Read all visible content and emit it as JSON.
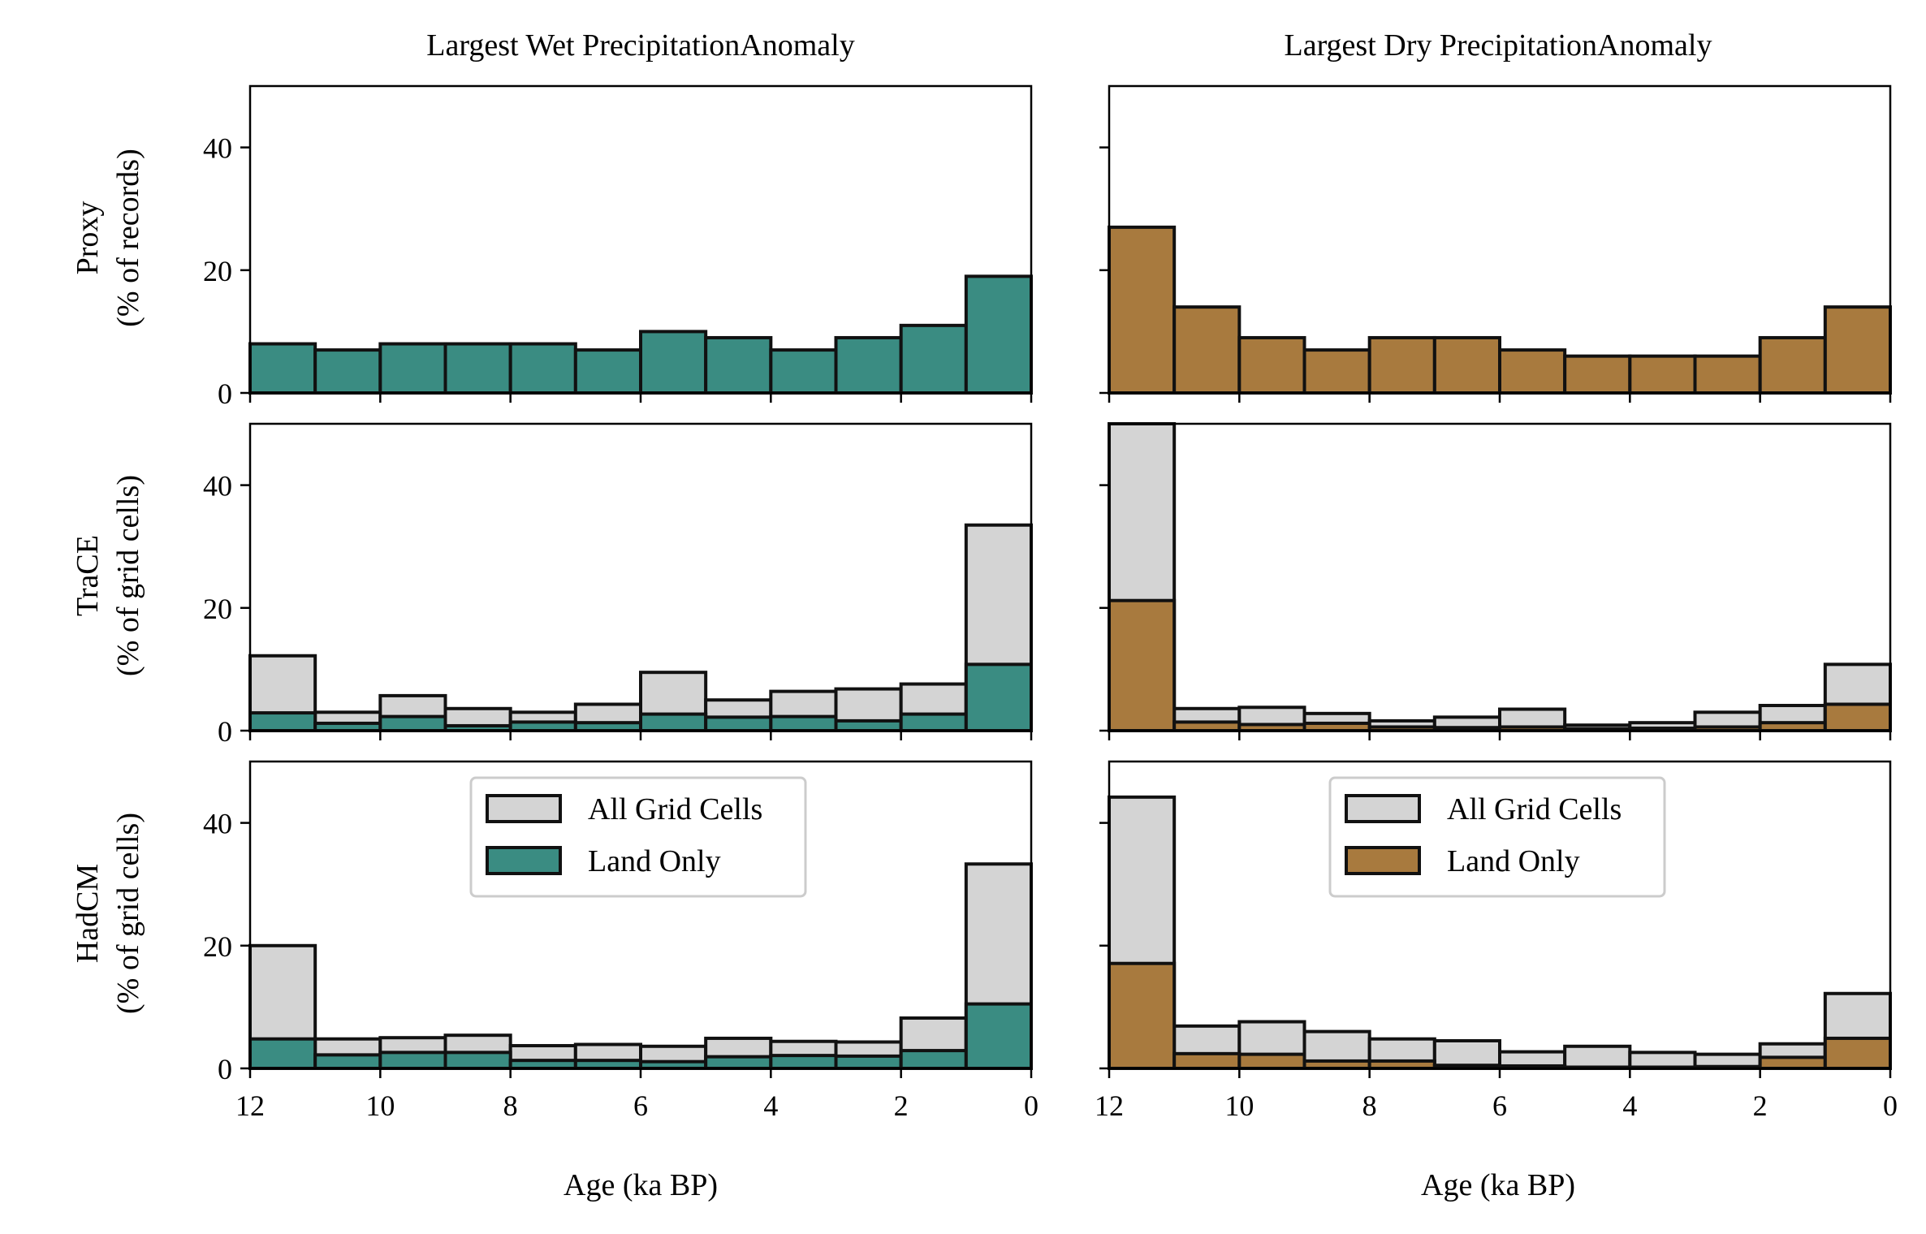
{
  "colors": {
    "wet": "#3a8c82",
    "dry": "#a87a3e",
    "all": "#d4d4d4",
    "edge": "#111111"
  },
  "columns": [
    {
      "title": "Largest Wet PrecipitationAnomaly",
      "xlabel": "Age (ka BP)"
    },
    {
      "title": "Largest Dry PrecipitationAnomaly",
      "xlabel": "Age (ka BP)"
    }
  ],
  "rows": [
    {
      "ylabel": [
        "Proxy",
        "(% of records)"
      ]
    },
    {
      "ylabel": [
        "TraCE",
        "(% of grid cells)"
      ]
    },
    {
      "ylabel": [
        "HadCM",
        "(% of grid cells)"
      ]
    }
  ],
  "legend": {
    "all": "All Grid Cells",
    "land": "Land Only"
  },
  "chart_data": {
    "type": "bar",
    "x_edges": [
      12,
      11,
      10,
      9,
      8,
      7,
      6,
      5,
      4,
      3,
      2,
      1,
      0
    ],
    "xlim": [
      12,
      0
    ],
    "ylim": [
      0,
      50
    ],
    "xticks": [
      12,
      10,
      8,
      6,
      4,
      2,
      0
    ],
    "yticks": [
      0,
      20,
      40
    ],
    "panels": [
      {
        "row": 0,
        "col": 0,
        "series": [
          {
            "name": "",
            "color": "wet",
            "values": [
              8,
              7,
              8,
              8,
              8,
              7,
              10,
              9,
              7,
              9,
              11,
              19
            ]
          }
        ]
      },
      {
        "row": 0,
        "col": 1,
        "series": [
          {
            "name": "",
            "color": "dry",
            "values": [
              27,
              14,
              9,
              7,
              9,
              9,
              7,
              6,
              6,
              6,
              9,
              14
            ]
          }
        ]
      },
      {
        "row": 1,
        "col": 0,
        "series": [
          {
            "name": "All Grid Cells",
            "color": "all",
            "values": [
              12.2,
              3,
              5.7,
              3.6,
              3,
              4.3,
              9.5,
              5,
              6.4,
              6.8,
              7.6,
              33.5
            ]
          },
          {
            "name": "Land Only",
            "color": "wet",
            "values": [
              2.9,
              1.2,
              2.3,
              0.8,
              1.4,
              1.3,
              2.7,
              2.2,
              2.3,
              1.6,
              2.7,
              10.8
            ]
          }
        ]
      },
      {
        "row": 1,
        "col": 1,
        "series": [
          {
            "name": "All Grid Cells",
            "color": "all",
            "values": [
              50,
              3.6,
              3.8,
              2.8,
              1.6,
              2.2,
              3.5,
              0.9,
              1.3,
              3,
              4.1,
              10.8
            ]
          },
          {
            "name": "Land Only",
            "color": "dry",
            "values": [
              21.2,
              1.4,
              1,
              1.2,
              0.6,
              0.5,
              0.6,
              0.3,
              0.4,
              0.6,
              1.3,
              4.3
            ]
          }
        ]
      },
      {
        "row": 2,
        "col": 0,
        "legend": true,
        "series": [
          {
            "name": "All Grid Cells",
            "color": "all",
            "values": [
              20,
              4.8,
              5,
              5.4,
              3.7,
              3.9,
              3.6,
              4.9,
              4.4,
              4.3,
              8.2,
              33.3
            ]
          },
          {
            "name": "Land Only",
            "color": "wet",
            "values": [
              4.8,
              2.2,
              2.6,
              2.6,
              1.3,
              1.3,
              1.1,
              1.9,
              2.1,
              2,
              2.9,
              10.5
            ]
          }
        ]
      },
      {
        "row": 2,
        "col": 1,
        "legend": true,
        "series": [
          {
            "name": "All Grid Cells",
            "color": "all",
            "values": [
              44.2,
              6.9,
              7.6,
              6,
              4.8,
              4.5,
              2.7,
              3.6,
              2.6,
              2.3,
              4,
              12.2
            ]
          },
          {
            "name": "Land Only",
            "color": "dry",
            "values": [
              17.1,
              2.4,
              2.3,
              1.2,
              1.2,
              0.5,
              0.4,
              0.2,
              0.2,
              0.3,
              1.8,
              4.9
            ]
          }
        ]
      }
    ]
  }
}
